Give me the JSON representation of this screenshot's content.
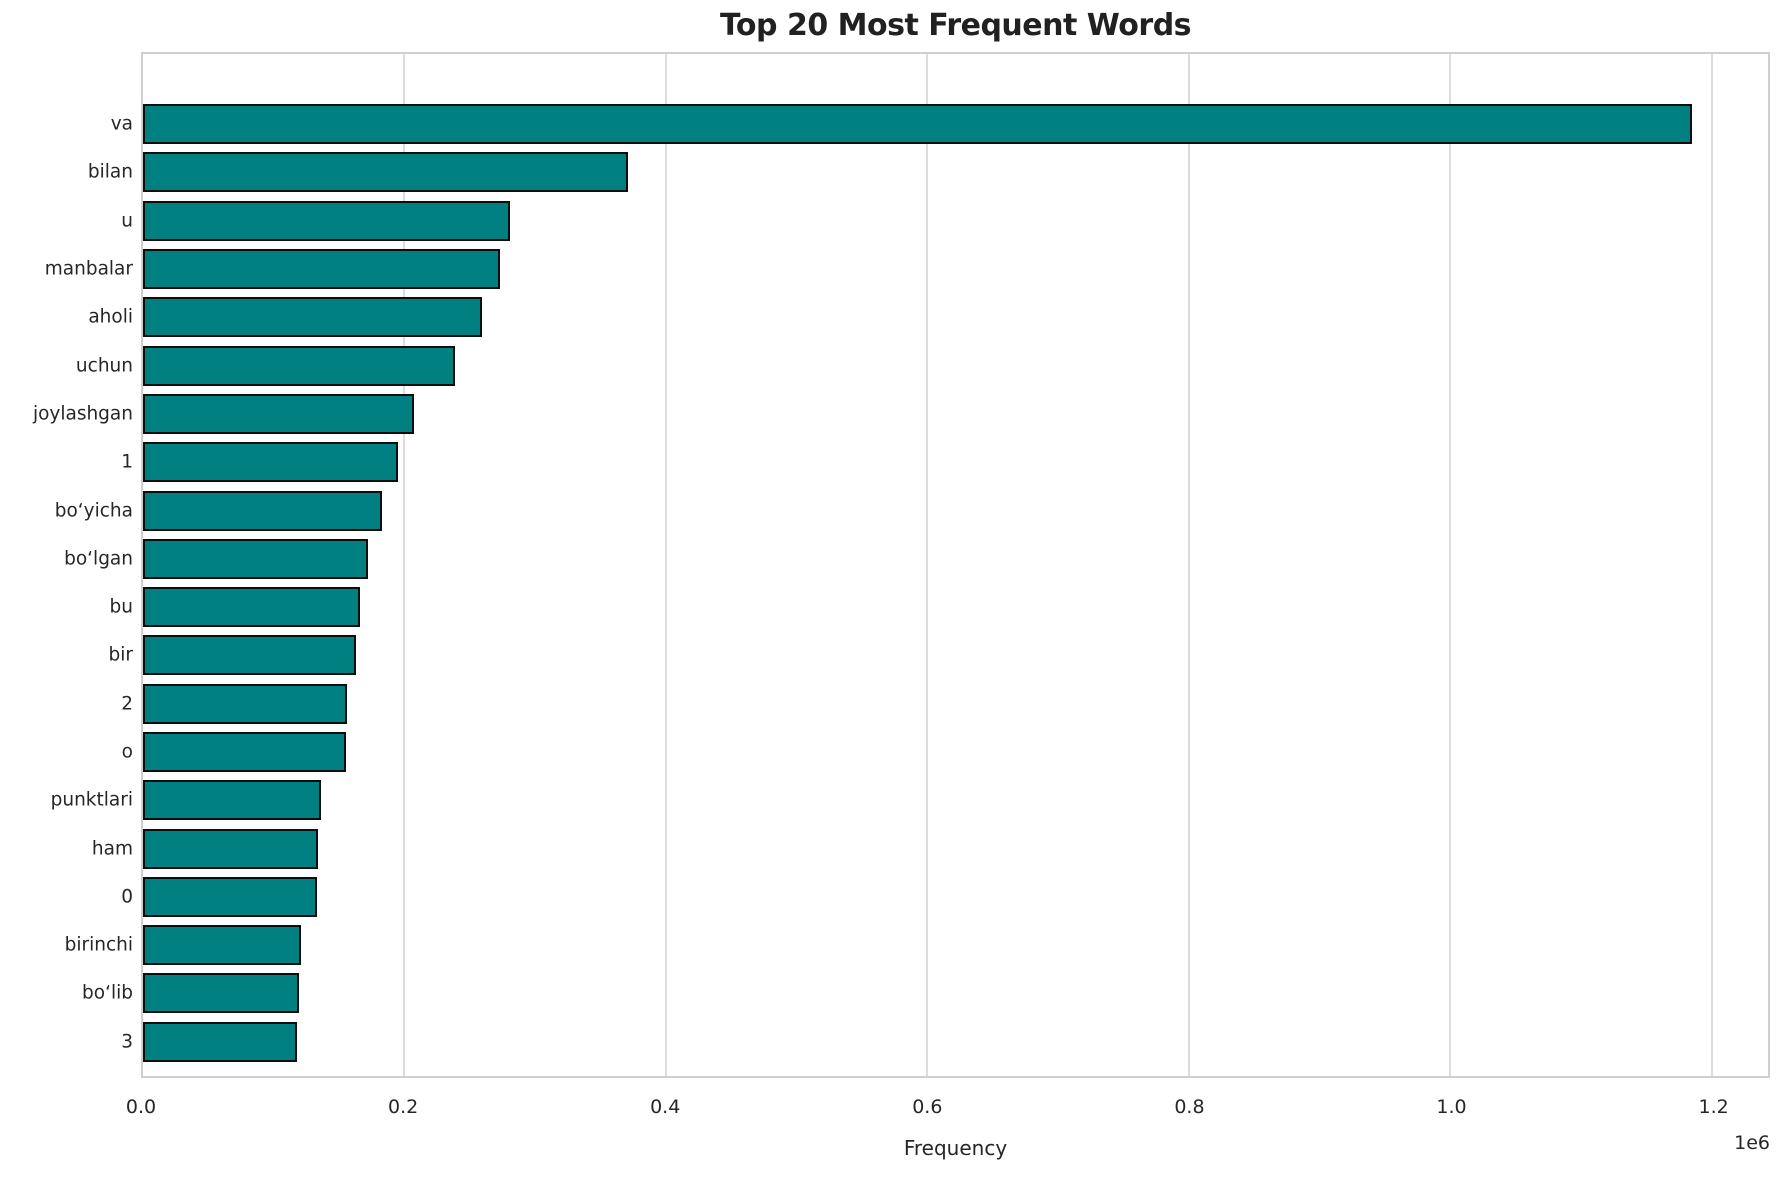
{
  "chart": {
    "title": "Top 20 Most Frequent Words",
    "xlabel": "Frequency",
    "offset_text": "1e6"
  },
  "colors": {
    "bar_fill": "#008080",
    "bar_edge": "#0d0d0d",
    "gridline": "#dcdcdc",
    "spine": "#cfcfcf",
    "tick_text": "#262626",
    "title_text": "#212121",
    "background": "#ffffff"
  },
  "chart_data": {
    "type": "bar",
    "orientation": "horizontal",
    "title": "Top 20 Most Frequent Words",
    "xlabel": "Frequency",
    "ylabel": "",
    "categories": [
      "va",
      "bilan",
      "u",
      "manbalar",
      "aholi",
      "uchun",
      "joylashgan",
      "1",
      "bo‘yicha",
      "bo‘lgan",
      "bu",
      "bir",
      "2",
      "o",
      "punktlari",
      "ham",
      "0",
      "birinchi",
      "bo‘lib",
      "3"
    ],
    "values": [
      1185000,
      371000,
      281000,
      273000,
      259000,
      239000,
      207000,
      195000,
      183000,
      172000,
      166000,
      163000,
      156000,
      155000,
      136000,
      134000,
      133000,
      121000,
      119000,
      118000
    ],
    "xlim": [
      0,
      1243000
    ],
    "x_ticks": [
      0,
      200000,
      400000,
      600000,
      800000,
      1000000,
      1200000
    ],
    "x_tick_labels": [
      "0.0",
      "0.2",
      "0.4",
      "0.6",
      "0.8",
      "1.0",
      "1.2"
    ],
    "x_offset_text": "1e6",
    "grid": true,
    "grid_axis": "x",
    "legend": false,
    "bar_color": "#008080",
    "bar_edge_color": "#0d0d0d"
  }
}
